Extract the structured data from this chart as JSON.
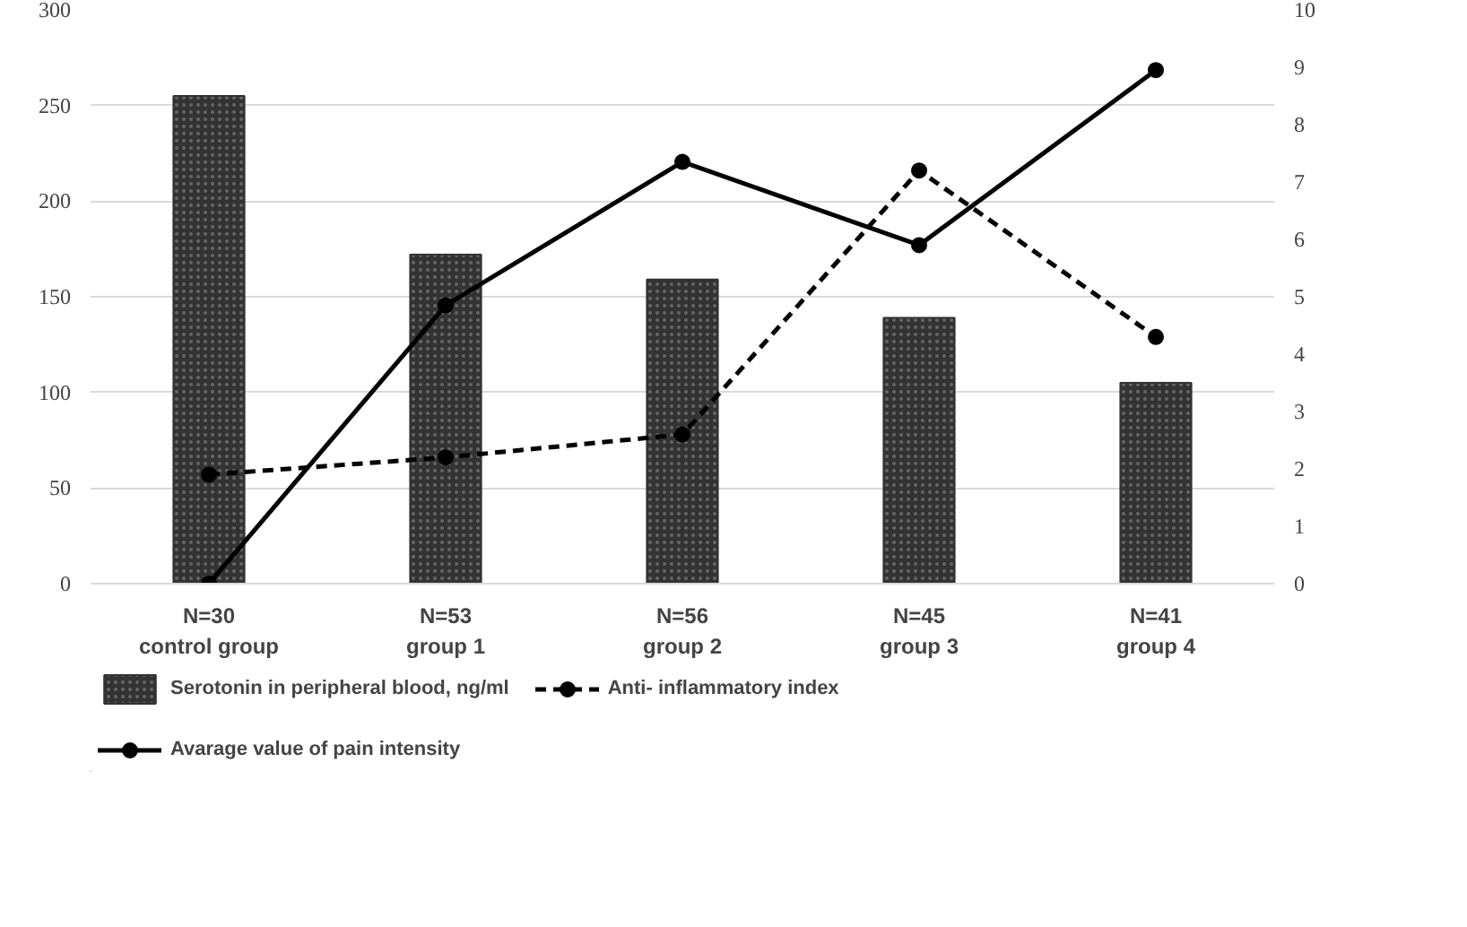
{
  "chart_data": {
    "type": "bar",
    "categories": [
      "N=30\ncontrol group",
      "N=53\ngroup 1",
      "N=56\ngroup 2",
      "N=45\ngroup 3",
      "N=41\ngroup 4"
    ],
    "series": [
      {
        "name": "Serotonin in peripheral blood, ng/ml",
        "color": "#333333",
        "values": [
          255,
          172,
          159,
          139,
          105
        ]
      },
      {
        "name": "Avarage value of pain intensity",
        "type": "line",
        "axis": "y2",
        "color": "#000000",
        "line_style": "solid",
        "marker": "circle",
        "values": [
          0,
          4.85,
          7.35,
          5.9,
          8.95
        ]
      },
      {
        "name": "Anti- inflammatory index",
        "type": "line",
        "axis": "y2",
        "color": "#000000",
        "line_style": "dashed",
        "marker": "circle",
        "values": [
          1.9,
          2.2,
          2.6,
          7.2,
          4.3
        ]
      }
    ],
    "ylim": [
      0,
      300
    ],
    "yticks": [
      0,
      50,
      100,
      150,
      200,
      250,
      300
    ],
    "y2lim": [
      0,
      10
    ],
    "y2ticks": [
      0,
      1,
      2,
      3,
      4,
      5,
      6,
      7,
      8,
      9,
      10
    ],
    "grid": "y",
    "legend": "bottom"
  }
}
